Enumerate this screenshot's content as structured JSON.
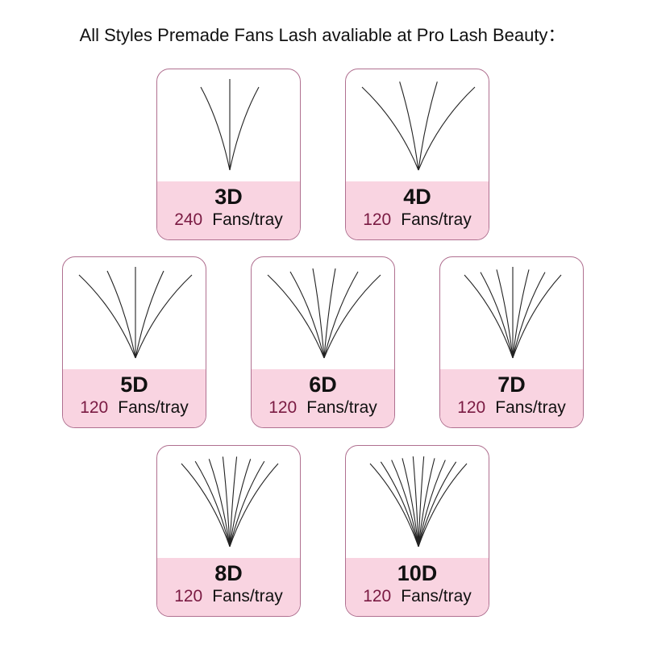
{
  "title": "All Styles Premade Fans Lash avaliable at Pro Lash Beauty：",
  "unit": "Fans/tray",
  "colors": {
    "border": "#b07090",
    "band": "#f9d4e1",
    "quantity": "#7a1a42"
  },
  "products": [
    {
      "style": "3D",
      "quantity": "240",
      "lashes": 3
    },
    {
      "style": "4D",
      "quantity": "120",
      "lashes": 4
    },
    {
      "style": "5D",
      "quantity": "120",
      "lashes": 5
    },
    {
      "style": "6D",
      "quantity": "120",
      "lashes": 6
    },
    {
      "style": "7D",
      "quantity": "120",
      "lashes": 7
    },
    {
      "style": "8D",
      "quantity": "120",
      "lashes": 8
    },
    {
      "style": "10D",
      "quantity": "120",
      "lashes": 10
    }
  ]
}
